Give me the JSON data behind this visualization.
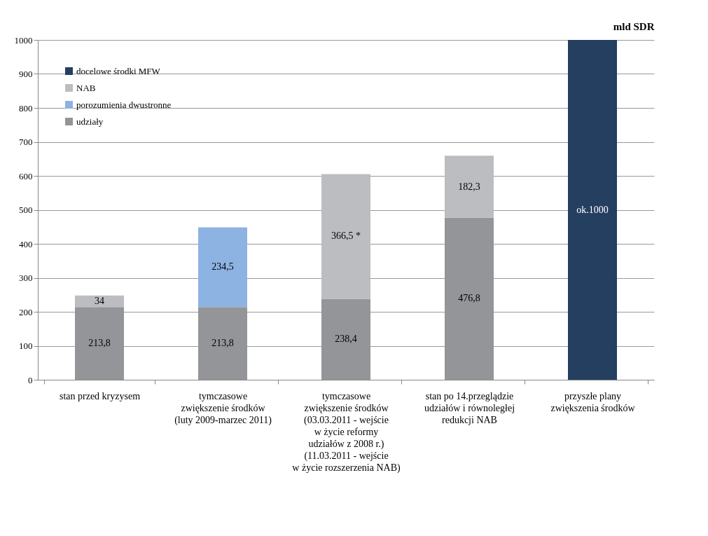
{
  "chart_data": {
    "type": "bar",
    "stacked": true,
    "ylabel": "mld SDR",
    "categories": [
      "stan przed kryzysem",
      "tymczasowe\nzwiększenie środków\n(luty 2009-marzec 2011)",
      "tymczasowe\nzwiększenie środków\n(03.03.2011 - wejście\nw życie reformy\nudziałów z 2008 r.)\n(11.03.2011 - wejście\nw życie rozszerzenia NAB)",
      "stan po 14.przeglądzie\nudziałów i równoległej\nredukcji NAB",
      "przyszłe plany\nzwiększenia środków"
    ],
    "series": [
      {
        "name": "udziały",
        "color": "#939598",
        "values": [
          213.8,
          213.8,
          238.4,
          476.8,
          null
        ],
        "value_labels": [
          "213,8",
          "213,8",
          "238,4",
          "476,8",
          null
        ]
      },
      {
        "name": "porozumienia dwustronne",
        "color": "#8db3e2",
        "values": [
          null,
          234.5,
          null,
          null,
          null
        ],
        "value_labels": [
          null,
          "234,5",
          null,
          null,
          null
        ]
      },
      {
        "name": "NAB",
        "color": "#bcbdc0",
        "values": [
          34,
          null,
          366.5,
          182.3,
          null
        ],
        "value_labels": [
          "34",
          null,
          "366,5 *",
          "182,3",
          null
        ]
      },
      {
        "name": "docelowe środki MFW",
        "color": "#243f60",
        "values": [
          null,
          null,
          null,
          null,
          1000
        ],
        "value_labels": [
          null,
          null,
          null,
          null,
          "ok.1000"
        ]
      }
    ],
    "ylim": [
      0,
      1000
    ],
    "yticks": [
      0,
      100,
      200,
      300,
      400,
      500,
      600,
      700,
      800,
      900,
      1000
    ],
    "grid": "y",
    "legend": "top left"
  }
}
